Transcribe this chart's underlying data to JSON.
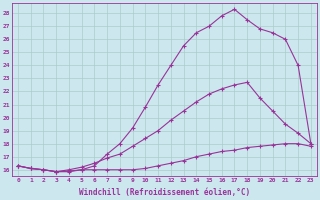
{
  "xlabel": "Windchill (Refroidissement éolien,°C)",
  "ylabel": "",
  "bg_color": "#cce8ee",
  "line_color": "#993399",
  "grid_color": "#aacccc",
  "xlim": [
    -0.5,
    23.5
  ],
  "ylim": [
    15.5,
    28.8
  ],
  "xticks": [
    0,
    1,
    2,
    3,
    4,
    5,
    6,
    7,
    8,
    9,
    10,
    11,
    12,
    13,
    14,
    15,
    16,
    17,
    18,
    19,
    20,
    21,
    22,
    23
  ],
  "yticks": [
    16,
    17,
    18,
    19,
    20,
    21,
    22,
    23,
    24,
    25,
    26,
    27,
    28
  ],
  "line1_x": [
    0,
    1,
    2,
    3,
    4,
    5,
    6,
    7,
    8,
    9,
    10,
    11,
    12,
    13,
    14,
    15,
    16,
    17,
    18,
    19,
    20,
    21,
    22,
    23
  ],
  "line1_y": [
    16.3,
    16.1,
    16.0,
    15.85,
    15.85,
    16.0,
    16.0,
    16.0,
    16.0,
    16.0,
    16.1,
    16.3,
    16.5,
    16.7,
    17.0,
    17.2,
    17.4,
    17.5,
    17.7,
    17.8,
    17.9,
    18.0,
    18.0,
    17.8
  ],
  "line2_x": [
    0,
    1,
    2,
    3,
    4,
    5,
    6,
    7,
    8,
    9,
    10,
    11,
    12,
    13,
    14,
    15,
    16,
    17,
    18,
    19,
    20,
    21,
    22,
    23
  ],
  "line2_y": [
    16.3,
    16.1,
    16.0,
    15.85,
    16.0,
    16.2,
    16.5,
    16.9,
    17.2,
    17.8,
    18.4,
    19.0,
    19.8,
    20.5,
    21.2,
    21.8,
    22.2,
    22.5,
    22.7,
    21.5,
    20.5,
    19.5,
    18.8,
    18.0
  ],
  "line3_x": [
    0,
    1,
    2,
    3,
    4,
    5,
    6,
    7,
    8,
    9,
    10,
    11,
    12,
    13,
    14,
    15,
    16,
    17,
    18,
    19,
    20,
    21,
    22,
    23
  ],
  "line3_y": [
    16.3,
    16.1,
    16.0,
    15.85,
    15.9,
    16.0,
    16.3,
    17.2,
    18.0,
    19.2,
    20.8,
    22.5,
    24.0,
    25.5,
    26.5,
    27.0,
    27.8,
    28.3,
    27.5,
    26.8,
    26.5,
    26.0,
    24.0,
    18.0
  ]
}
